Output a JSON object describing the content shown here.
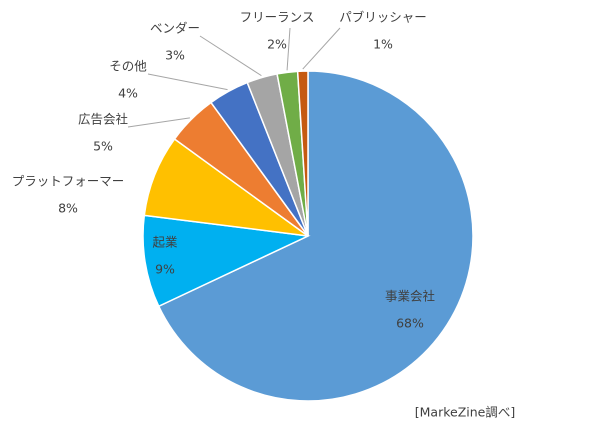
{
  "chart_data": {
    "type": "pie",
    "categories": [
      "事業会社",
      "起業",
      "プラットフォーマー",
      "広告会社",
      "その他",
      "ベンダー",
      "フリーランス",
      "パブリッシャー"
    ],
    "values": [
      68,
      9,
      8,
      5,
      4,
      3,
      2,
      1
    ],
    "value_labels": [
      "68%",
      "9%",
      "8%",
      "5%",
      "4%",
      "3%",
      "2%",
      "1%"
    ],
    "colors": [
      "#5b9bd5",
      "#00b0f0",
      "#ffc000",
      "#ed7d31",
      "#4472c4",
      "#a5a5a5",
      "#70ad47",
      "#c55a11"
    ],
    "source": "[MarkeZine調べ]"
  }
}
